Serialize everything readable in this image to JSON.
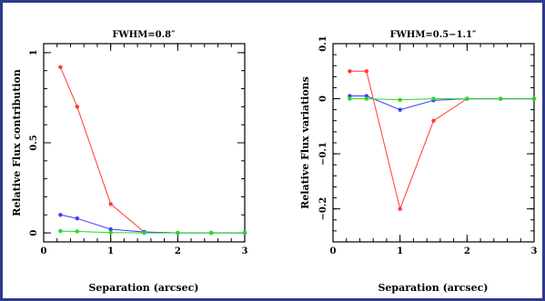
{
  "chart_data": [
    {
      "type": "line",
      "title": "FWHM=0.8″",
      "xlabel": "Separation (arcsec)",
      "ylabel": "Relative Flux contribution",
      "xlim": [
        0,
        3
      ],
      "ylim": [
        -0.05,
        1.05
      ],
      "xticks": [
        "0",
        "1",
        "2",
        "3"
      ],
      "yticks": [
        "0",
        "0.5",
        "1"
      ],
      "grid": false,
      "series": [
        {
          "color": "#ff3b30",
          "x": [
            0.25,
            0.5,
            1.0,
            1.5,
            2.0,
            2.5,
            3.0
          ],
          "y": [
            0.92,
            0.7,
            0.16,
            0.005,
            0.0,
            0.0,
            0.0
          ]
        },
        {
          "color": "#3b3bff",
          "x": [
            0.25,
            0.5,
            1.0,
            1.5,
            2.0,
            2.5,
            3.0
          ],
          "y": [
            0.1,
            0.08,
            0.02,
            0.005,
            0.0,
            0.0,
            0.0
          ]
        },
        {
          "color": "#22dd22",
          "x": [
            0.25,
            0.5,
            1.0,
            1.5,
            2.0,
            2.5,
            3.0
          ],
          "y": [
            0.01,
            0.008,
            0.002,
            0.0,
            0.0,
            0.0,
            0.0
          ]
        }
      ]
    },
    {
      "type": "line",
      "title": "FWHM=0.5−1.1″",
      "xlabel": "Separation (arcsec)",
      "ylabel": "Relative Flux variations",
      "xlim": [
        0,
        3
      ],
      "ylim": [
        -0.26,
        0.1
      ],
      "xticks": [
        "0",
        "1",
        "2",
        "3"
      ],
      "yticks": [
        "−0.2",
        "−0.1",
        "0",
        "0.1"
      ],
      "grid": false,
      "series": [
        {
          "color": "#ff3b30",
          "x": [
            0.25,
            0.5,
            1.0,
            1.5,
            2.0,
            2.5,
            3.0
          ],
          "y": [
            0.05,
            0.05,
            -0.2,
            -0.04,
            0.0,
            0.0,
            0.0
          ]
        },
        {
          "color": "#3b3bff",
          "x": [
            0.25,
            0.5,
            1.0,
            1.5,
            2.0,
            2.5,
            3.0
          ],
          "y": [
            0.005,
            0.005,
            -0.02,
            -0.003,
            0.0,
            0.0,
            0.0
          ]
        },
        {
          "color": "#22dd22",
          "x": [
            0.25,
            0.5,
            1.0,
            1.5,
            2.0,
            2.5,
            3.0
          ],
          "y": [
            0.0,
            0.0,
            -0.002,
            0.0,
            0.0,
            0.0,
            0.0
          ]
        }
      ]
    }
  ]
}
